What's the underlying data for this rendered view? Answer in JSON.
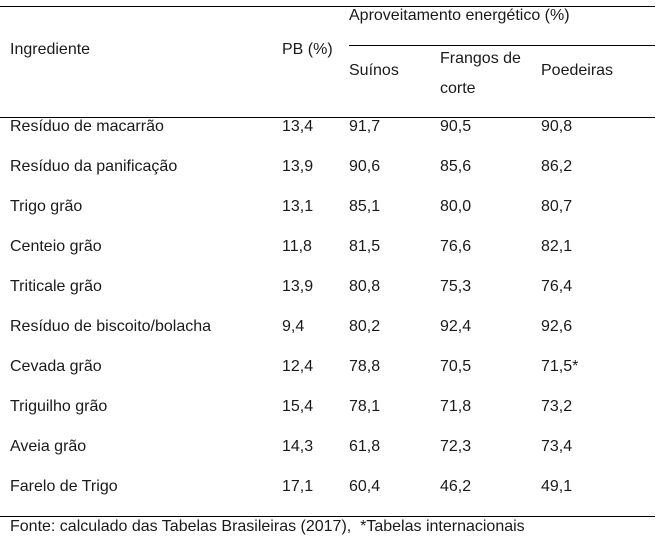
{
  "table": {
    "headers": {
      "ingredient": "Ingrediente",
      "pb": "PB (%)",
      "group": "Aproveitamento energético (%)",
      "suinos": "Suínos",
      "frangos": "Frangos de corte",
      "poedeiras": "Poedeiras"
    },
    "rows": [
      {
        "ingrediente": "Resíduo de macarrão",
        "pb": "13,4",
        "suinos": "91,7",
        "frangos": "90,5",
        "poedeiras": "90,8"
      },
      {
        "ingrediente": "Resíduo da panificação",
        "pb": "13,9",
        "suinos": "90,6",
        "frangos": "85,6",
        "poedeiras": "86,2"
      },
      {
        "ingrediente": "Trigo grão",
        "pb": "13,1",
        "suinos": "85,1",
        "frangos": "80,0",
        "poedeiras": "80,7"
      },
      {
        "ingrediente": "Centeio grão",
        "pb": "11,8",
        "suinos": "81,5",
        "frangos": "76,6",
        "poedeiras": "82,1"
      },
      {
        "ingrediente": "Triticale grão",
        "pb": "13,9",
        "suinos": "80,8",
        "frangos": "75,3",
        "poedeiras": "76,4"
      },
      {
        "ingrediente": "Resíduo de biscoito/bolacha",
        "pb": "9,4",
        "suinos": "80,2",
        "frangos": "92,4",
        "poedeiras": "92,6"
      },
      {
        "ingrediente": "Cevada grão",
        "pb": "12,4",
        "suinos": "78,8",
        "frangos": "70,5",
        "poedeiras": "71,5*"
      },
      {
        "ingrediente": "Triguilho grão",
        "pb": "15,4",
        "suinos": "78,1",
        "frangos": "71,8",
        "poedeiras": "73,2"
      },
      {
        "ingrediente": "Aveia grão",
        "pb": "14,3",
        "suinos": "61,8",
        "frangos": "72,3",
        "poedeiras": "73,4"
      },
      {
        "ingrediente": "Farelo de Trigo",
        "pb": "17,1",
        "suinos": "60,4",
        "frangos": "46,2",
        "poedeiras": "49,1"
      }
    ]
  },
  "footnote": "Fonte: calculado das Tabelas Brasileiras (2017),  *Tabelas internacionais"
}
